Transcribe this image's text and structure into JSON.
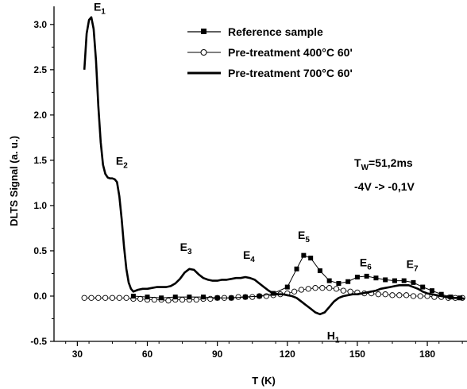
{
  "chart_data": {
    "type": "line",
    "xlabel": "T (K)",
    "ylabel": "DLTS Signal (a. u.)",
    "xlim": [
      20,
      197
    ],
    "ylim": [
      -0.5,
      3.2
    ],
    "xticks": [
      30,
      60,
      90,
      120,
      150,
      180
    ],
    "xtick_labels": [
      "30",
      "60",
      "90",
      "120",
      "150",
      "180"
    ],
    "yticks": [
      -0.5,
      0.0,
      0.5,
      1.0,
      1.5,
      2.0,
      2.5,
      3.0
    ],
    "ytick_labels": [
      "-0.5",
      "0.0",
      "0.5",
      "1.0",
      "1.5",
      "2.0",
      "2.5",
      "3.0"
    ],
    "legend_position": "top-center",
    "series": [
      {
        "name": "Reference sample",
        "style": "line-filled-square",
        "color": "#000000",
        "x": [
          54,
          60,
          66,
          72,
          78,
          84,
          90,
          96,
          102,
          108,
          114,
          120,
          124,
          127,
          130,
          134,
          138,
          142,
          146,
          150,
          154,
          158,
          162,
          166,
          170,
          174,
          178,
          182,
          186,
          190,
          194
        ],
        "y": [
          0.0,
          -0.01,
          -0.02,
          -0.01,
          -0.01,
          -0.01,
          -0.02,
          -0.02,
          -0.01,
          0.0,
          0.03,
          0.1,
          0.3,
          0.45,
          0.42,
          0.28,
          0.17,
          0.14,
          0.16,
          0.21,
          0.22,
          0.2,
          0.18,
          0.17,
          0.17,
          0.15,
          0.1,
          0.06,
          0.02,
          -0.01,
          -0.02
        ]
      },
      {
        "name": "Pre-treatment 400°C 60'",
        "style": "line-open-circle",
        "color": "#000000",
        "x": [
          33,
          36,
          39,
          42,
          45,
          48,
          51,
          54,
          57,
          60,
          63,
          66,
          69,
          72,
          75,
          78,
          81,
          84,
          87,
          90,
          93,
          96,
          99,
          102,
          105,
          108,
          111,
          114,
          117,
          120,
          123,
          126,
          129,
          132,
          135,
          138,
          141,
          144,
          147,
          150,
          153,
          156,
          159,
          162,
          165,
          168,
          171,
          174,
          177,
          180,
          183,
          186,
          189,
          192,
          195
        ],
        "y": [
          -0.02,
          -0.02,
          -0.02,
          -0.02,
          -0.02,
          -0.02,
          -0.02,
          -0.03,
          -0.03,
          -0.04,
          -0.04,
          -0.04,
          -0.05,
          -0.04,
          -0.04,
          -0.04,
          -0.04,
          -0.03,
          -0.03,
          -0.02,
          -0.02,
          -0.02,
          -0.01,
          -0.01,
          -0.01,
          0.0,
          0.0,
          0.01,
          0.02,
          0.03,
          0.05,
          0.07,
          0.08,
          0.09,
          0.09,
          0.09,
          0.08,
          0.06,
          0.05,
          0.04,
          0.03,
          0.03,
          0.02,
          0.02,
          0.01,
          0.01,
          0.01,
          0.0,
          0.0,
          0.0,
          -0.01,
          -0.01,
          -0.02,
          -0.02,
          -0.02
        ]
      },
      {
        "name": "Pre-treatment 700°C 60'",
        "style": "thick-line",
        "color": "#000000",
        "x": [
          33,
          34,
          35,
          36,
          37,
          38,
          39,
          40,
          41,
          42,
          43,
          44,
          45,
          46,
          47,
          48,
          49,
          50,
          51,
          52,
          53,
          54,
          56,
          58,
          60,
          62,
          64,
          66,
          68,
          70,
          72,
          74,
          76,
          78,
          80,
          82,
          84,
          86,
          88,
          90,
          92,
          94,
          96,
          98,
          100,
          102,
          104,
          106,
          108,
          110,
          112,
          114,
          116,
          118,
          120,
          122,
          124,
          126,
          128,
          130,
          132,
          134,
          136,
          138,
          140,
          142,
          144,
          146,
          148,
          150,
          152,
          154,
          156,
          158,
          160,
          162,
          164,
          166,
          168,
          170,
          172,
          174,
          176,
          178,
          180,
          182,
          184,
          186,
          188,
          190,
          192,
          194,
          196
        ],
        "y": [
          2.5,
          2.9,
          3.05,
          3.08,
          2.95,
          2.6,
          2.1,
          1.7,
          1.45,
          1.35,
          1.31,
          1.3,
          1.3,
          1.29,
          1.26,
          1.1,
          0.85,
          0.55,
          0.3,
          0.15,
          0.08,
          0.05,
          0.07,
          0.08,
          0.08,
          0.09,
          0.1,
          0.1,
          0.1,
          0.11,
          0.14,
          0.19,
          0.26,
          0.3,
          0.29,
          0.24,
          0.2,
          0.18,
          0.17,
          0.17,
          0.18,
          0.18,
          0.19,
          0.2,
          0.2,
          0.21,
          0.2,
          0.18,
          0.14,
          0.1,
          0.06,
          0.03,
          0.02,
          0.02,
          0.01,
          0.0,
          -0.02,
          -0.06,
          -0.1,
          -0.14,
          -0.18,
          -0.2,
          -0.18,
          -0.12,
          -0.06,
          -0.02,
          0.0,
          0.01,
          0.02,
          0.02,
          0.03,
          0.04,
          0.05,
          0.06,
          0.08,
          0.09,
          0.1,
          0.11,
          0.12,
          0.12,
          0.12,
          0.1,
          0.08,
          0.05,
          0.03,
          0.02,
          0.01,
          0.0,
          -0.01,
          -0.02,
          -0.02,
          -0.02,
          -0.03
        ]
      }
    ],
    "annotations": [
      {
        "main": "E",
        "sub": "1",
        "x": 37,
        "y": 3.15
      },
      {
        "main": "E",
        "sub": "2",
        "x": 46.5,
        "y": 1.45
      },
      {
        "main": "E",
        "sub": "3",
        "x": 74,
        "y": 0.5
      },
      {
        "main": "E",
        "sub": "4",
        "x": 101,
        "y": 0.41
      },
      {
        "main": "E",
        "sub": "5",
        "x": 124.5,
        "y": 0.63
      },
      {
        "main": "E",
        "sub": "6",
        "x": 151,
        "y": 0.33
      },
      {
        "main": "E",
        "sub": "7",
        "x": 171,
        "y": 0.31
      },
      {
        "main": "H",
        "sub": "1",
        "x": 137,
        "y": -0.48
      }
    ],
    "text_annotations": {
      "tw_main": "T",
      "tw_sub": "W",
      "tw_value": "=51,2ms",
      "voltage": "-4V -> -0,1V"
    }
  }
}
